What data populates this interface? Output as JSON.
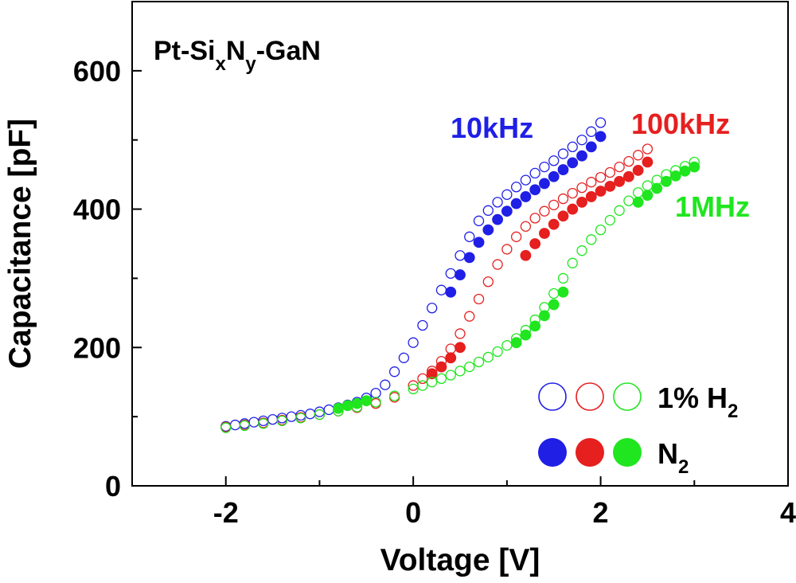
{
  "chart_data": {
    "type": "scatter",
    "title_parts": [
      "Pt-Si",
      "x",
      "N",
      "y",
      "-GaN"
    ],
    "xlabel": "Voltage [V]",
    "ylabel": "Capacitance [pF]",
    "xlim": [
      -3,
      4
    ],
    "ylim": [
      0,
      700
    ],
    "x_ticks": [
      -2,
      0,
      2,
      4
    ],
    "x_tick_labels": [
      "-2",
      "0",
      "2",
      "4"
    ],
    "y_ticks": [
      0,
      200,
      400,
      600
    ],
    "y_tick_labels": [
      "0",
      "200",
      "400",
      "600"
    ],
    "grid": false,
    "legend": {
      "position": "bottom-right",
      "h2_label": [
        "1% H",
        "2"
      ],
      "n2_label": [
        "N",
        "2"
      ]
    },
    "annotations": [
      {
        "text": "10kHz",
        "color": "#1f1fe6"
      },
      {
        "text": "100kHz",
        "color": "#e61f1f"
      },
      {
        "text": "1MHz",
        "color": "#1fe61f"
      }
    ],
    "series": [
      {
        "name": "10kHz 1% H2",
        "frequency": "10kHz",
        "gas": "1% H2",
        "fill": "open",
        "color": "#1f1fe6",
        "x": [
          -2.0,
          -1.9,
          -1.8,
          -1.7,
          -1.6,
          -1.5,
          -1.4,
          -1.3,
          -1.2,
          -1.1,
          -1.0,
          -0.9,
          -0.8,
          -0.7,
          -0.6,
          -0.5,
          -0.4,
          -0.3,
          -0.2,
          -0.1,
          0.0,
          0.1,
          0.2,
          0.3,
          0.4,
          0.5,
          0.6,
          0.7,
          0.8,
          0.9,
          1.0,
          1.1,
          1.2,
          1.3,
          1.4,
          1.5,
          1.6,
          1.7,
          1.8,
          1.9,
          2.0
        ],
        "y": [
          86,
          88,
          90,
          92,
          94,
          96,
          98,
          100,
          102,
          104,
          107,
          110,
          113,
          117,
          121,
          127,
          134,
          146,
          165,
          185,
          207,
          232,
          257,
          283,
          307,
          333,
          360,
          383,
          398,
          410,
          421,
          432,
          442,
          452,
          461,
          470,
          480,
          490,
          500,
          512,
          525
        ]
      },
      {
        "name": "10kHz N2",
        "frequency": "10kHz",
        "gas": "N2",
        "fill": "filled",
        "color": "#1f1fe6",
        "x": [
          0.4,
          0.5,
          0.6,
          0.7,
          0.8,
          0.9,
          1.0,
          1.1,
          1.2,
          1.3,
          1.4,
          1.5,
          1.6,
          1.7,
          1.8,
          1.9,
          2.0
        ],
        "y": [
          280,
          305,
          330,
          352,
          370,
          385,
          397,
          408,
          418,
          428,
          437,
          447,
          457,
          467,
          477,
          490,
          505
        ]
      },
      {
        "name": "100kHz 1% H2",
        "frequency": "100kHz",
        "gas": "1% H2",
        "fill": "open",
        "color": "#e61f1f",
        "x": [
          -2.0,
          -1.8,
          -1.6,
          -1.4,
          -1.2,
          -1.0,
          -0.8,
          -0.6,
          -0.4,
          -0.2,
          0.0,
          0.1,
          0.2,
          0.3,
          0.4,
          0.5,
          0.6,
          0.7,
          0.8,
          0.9,
          1.0,
          1.1,
          1.2,
          1.3,
          1.4,
          1.5,
          1.6,
          1.7,
          1.8,
          1.9,
          2.0,
          2.1,
          2.2,
          2.3,
          2.4,
          2.5
        ],
        "y": [
          85,
          88,
          91,
          95,
          99,
          103,
          108,
          113,
          119,
          128,
          145,
          155,
          166,
          180,
          198,
          220,
          245,
          270,
          295,
          320,
          342,
          360,
          375,
          387,
          397,
          406,
          415,
          423,
          431,
          439,
          446,
          453,
          461,
          469,
          478,
          487
        ]
      },
      {
        "name": "100kHz N2",
        "frequency": "100kHz",
        "gas": "N2",
        "fill": "filled",
        "color": "#e61f1f",
        "x": [
          0.2,
          0.3,
          0.4,
          0.5,
          1.2,
          1.3,
          1.4,
          1.5,
          1.6,
          1.7,
          1.8,
          1.9,
          2.0,
          2.1,
          2.2,
          2.3,
          2.4,
          2.5
        ],
        "y": [
          162,
          172,
          185,
          200,
          333,
          350,
          365,
          378,
          390,
          400,
          410,
          418,
          426,
          433,
          440,
          447,
          456,
          468
        ]
      },
      {
        "name": "1MHz 1% H2",
        "frequency": "1MHz",
        "gas": "1% H2",
        "fill": "open",
        "color": "#1fe61f",
        "x": [
          -2.0,
          -1.8,
          -1.6,
          -1.4,
          -1.2,
          -1.0,
          -0.8,
          -0.6,
          -0.4,
          -0.2,
          0.0,
          0.1,
          0.2,
          0.3,
          0.4,
          0.5,
          0.6,
          0.7,
          0.8,
          0.9,
          1.0,
          1.1,
          1.2,
          1.3,
          1.4,
          1.5,
          1.6,
          1.7,
          1.8,
          1.9,
          2.0,
          2.1,
          2.2,
          2.3,
          2.4,
          2.5,
          2.6,
          2.7,
          2.8,
          2.9,
          3.0
        ],
        "y": [
          84,
          87,
          90,
          94,
          98,
          103,
          108,
          114,
          121,
          130,
          140,
          145,
          150,
          155,
          160,
          166,
          172,
          179,
          186,
          194,
          203,
          213,
          225,
          240,
          258,
          278,
          300,
          322,
          340,
          356,
          370,
          384,
          398,
          412,
          424,
          434,
          442,
          450,
          456,
          462,
          468
        ]
      },
      {
        "name": "1MHz N2",
        "frequency": "1MHz",
        "gas": "N2",
        "fill": "filled",
        "color": "#1fe61f",
        "x": [
          -0.8,
          -0.7,
          -0.6,
          -0.5,
          1.1,
          1.2,
          1.3,
          1.4,
          1.5,
          1.6,
          2.4,
          2.5,
          2.6,
          2.7,
          2.8,
          2.9,
          3.0
        ],
        "y": [
          112,
          116,
          119,
          123,
          207,
          218,
          231,
          246,
          262,
          280,
          410,
          420,
          430,
          440,
          448,
          455,
          461
        ]
      }
    ]
  }
}
